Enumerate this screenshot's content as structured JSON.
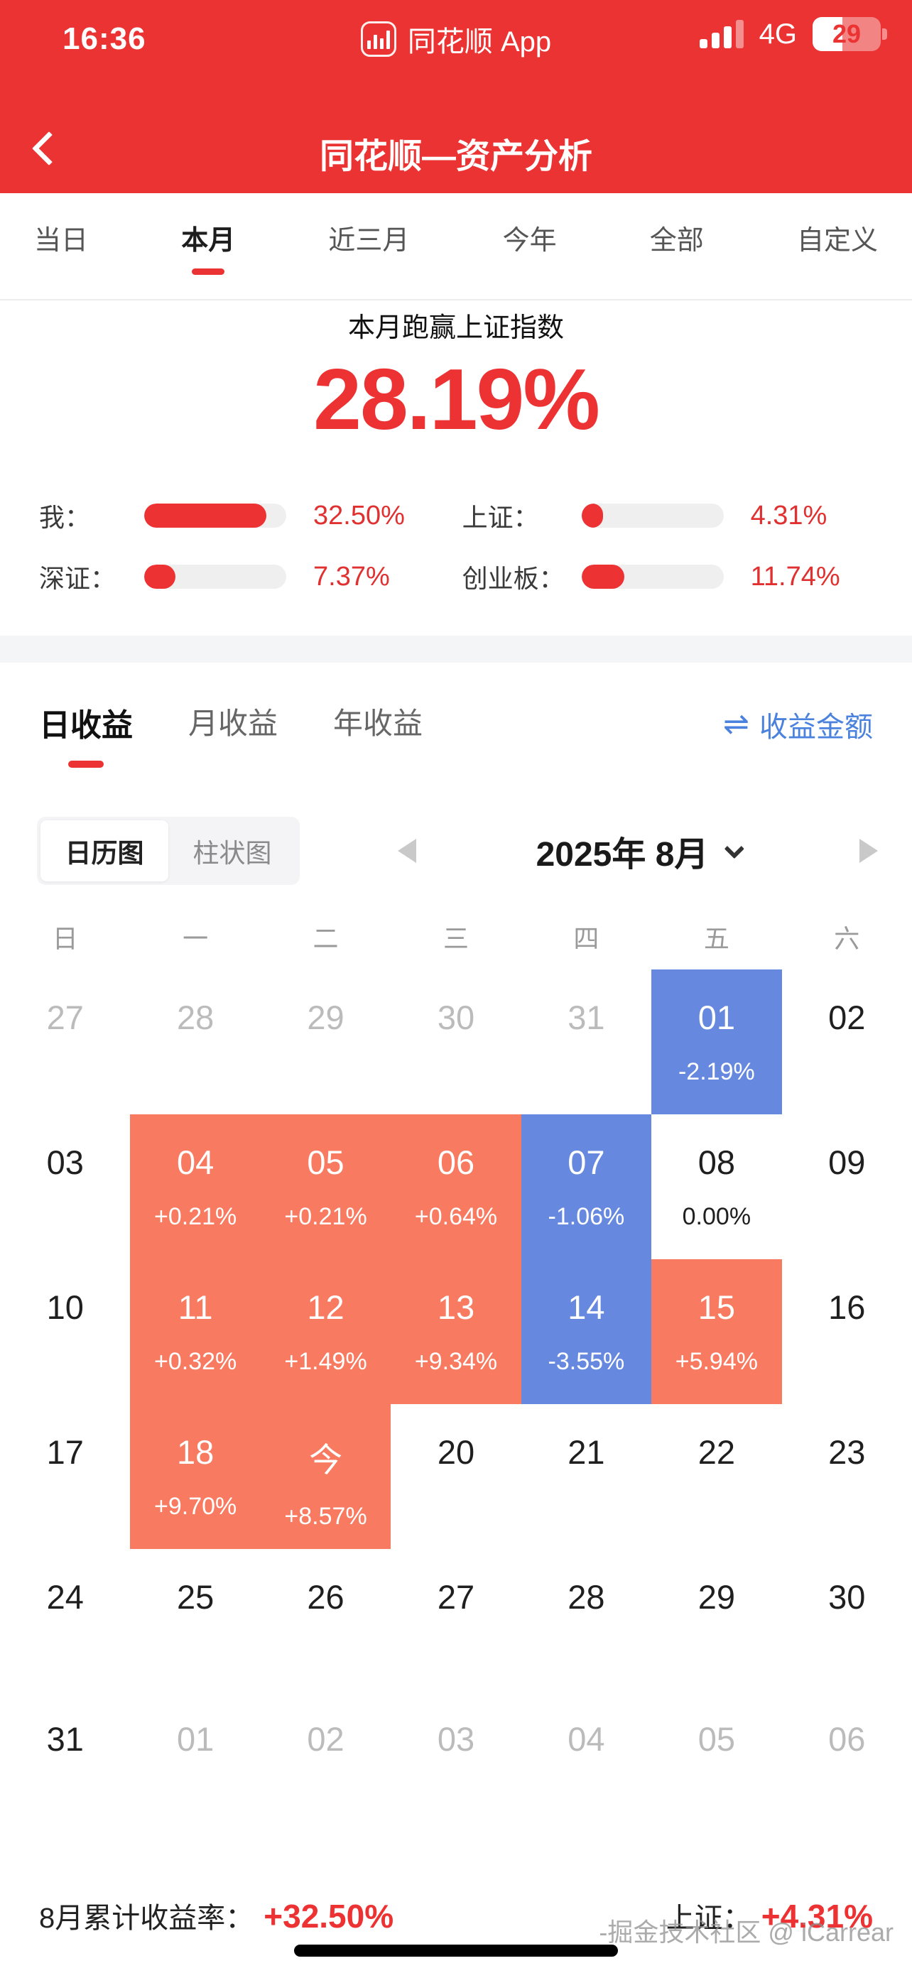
{
  "status_bar": {
    "time": "16:36",
    "app_banner": "同花顺 App",
    "network": "4G",
    "battery_level": "29"
  },
  "nav": {
    "title": "同花顺—资产分析"
  },
  "period_tabs": [
    {
      "label": "当日",
      "cls": ""
    },
    {
      "label": "本月",
      "cls": "active"
    },
    {
      "label": "近三月",
      "cls": ""
    },
    {
      "label": "今年",
      "cls": ""
    },
    {
      "label": "全部",
      "cls": ""
    },
    {
      "label": "自定义",
      "cls": ""
    }
  ],
  "summary": {
    "headline": "本月跑赢上证指数",
    "value": "28.19%"
  },
  "stats": [
    {
      "label": "我：",
      "value": "32.50%",
      "fill": "86%"
    },
    {
      "label": "上证：",
      "value": "4.31%",
      "fill": "15%"
    },
    {
      "label": "深证：",
      "value": "7.37%",
      "fill": "22%"
    },
    {
      "label": "创业板：",
      "value": "11.74%",
      "fill": "30%"
    }
  ],
  "income_tabs": [
    {
      "label": "日收益",
      "cls": "active"
    },
    {
      "label": "月收益",
      "cls": ""
    },
    {
      "label": "年收益",
      "cls": ""
    }
  ],
  "amount_link": {
    "icon": "⇌",
    "label": "收益金额"
  },
  "view_toggle": [
    {
      "label": "日历图",
      "cls": "selected"
    },
    {
      "label": "柱状图",
      "cls": ""
    }
  ],
  "month_nav": {
    "label": "2025年 8月"
  },
  "calendar": {
    "weekdays": [
      "日",
      "一",
      "二",
      "三",
      "四",
      "五",
      "六"
    ],
    "cells": [
      {
        "d": "27",
        "v": "",
        "c": "muted"
      },
      {
        "d": "28",
        "v": "",
        "c": "muted"
      },
      {
        "d": "29",
        "v": "",
        "c": "muted"
      },
      {
        "d": "30",
        "v": "",
        "c": "muted"
      },
      {
        "d": "31",
        "v": "",
        "c": "muted"
      },
      {
        "d": "01",
        "v": "-2.19%",
        "c": "neg"
      },
      {
        "d": "02",
        "v": "",
        "c": ""
      },
      {
        "d": "03",
        "v": "",
        "c": ""
      },
      {
        "d": "04",
        "v": "+0.21%",
        "c": "pos"
      },
      {
        "d": "05",
        "v": "+0.21%",
        "c": "pos"
      },
      {
        "d": "06",
        "v": "+0.64%",
        "c": "pos"
      },
      {
        "d": "07",
        "v": "-1.06%",
        "c": "neg"
      },
      {
        "d": "08",
        "v": "0.00%",
        "c": "flat"
      },
      {
        "d": "09",
        "v": "",
        "c": ""
      },
      {
        "d": "10",
        "v": "",
        "c": ""
      },
      {
        "d": "11",
        "v": "+0.32%",
        "c": "pos"
      },
      {
        "d": "12",
        "v": "+1.49%",
        "c": "pos"
      },
      {
        "d": "13",
        "v": "+9.34%",
        "c": "pos"
      },
      {
        "d": "14",
        "v": "-3.55%",
        "c": "neg"
      },
      {
        "d": "15",
        "v": "+5.94%",
        "c": "pos"
      },
      {
        "d": "16",
        "v": "",
        "c": ""
      },
      {
        "d": "17",
        "v": "",
        "c": ""
      },
      {
        "d": "18",
        "v": "+9.70%",
        "c": "pos"
      },
      {
        "d": "今",
        "v": "+8.57%",
        "c": "pos today"
      },
      {
        "d": "20",
        "v": "",
        "c": ""
      },
      {
        "d": "21",
        "v": "",
        "c": ""
      },
      {
        "d": "22",
        "v": "",
        "c": ""
      },
      {
        "d": "23",
        "v": "",
        "c": ""
      },
      {
        "d": "24",
        "v": "",
        "c": ""
      },
      {
        "d": "25",
        "v": "",
        "c": ""
      },
      {
        "d": "26",
        "v": "",
        "c": ""
      },
      {
        "d": "27",
        "v": "",
        "c": ""
      },
      {
        "d": "28",
        "v": "",
        "c": ""
      },
      {
        "d": "29",
        "v": "",
        "c": ""
      },
      {
        "d": "30",
        "v": "",
        "c": ""
      },
      {
        "d": "31",
        "v": "",
        "c": ""
      },
      {
        "d": "01",
        "v": "",
        "c": "muted"
      },
      {
        "d": "02",
        "v": "",
        "c": "muted"
      },
      {
        "d": "03",
        "v": "",
        "c": "muted"
      },
      {
        "d": "04",
        "v": "",
        "c": "muted"
      },
      {
        "d": "05",
        "v": "",
        "c": "muted"
      },
      {
        "d": "06",
        "v": "",
        "c": "muted"
      }
    ]
  },
  "footer": {
    "left_label": "8月累计收益率：",
    "left_value": "+32.50%",
    "right_label": "上证：",
    "right_value": "+4.31%"
  },
  "watermark": "-掘金技术社区 @ iCarrear",
  "colors": {
    "header_red": "#EC3333",
    "accent_red": "#ED3233",
    "gain_orange": "#F87A60",
    "loss_blue": "#6688DF",
    "link_blue": "#4B82DE"
  }
}
